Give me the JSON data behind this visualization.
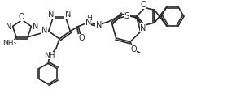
{
  "background_color": "#ffffff",
  "line_color": "#2a2a2a",
  "figsize": [
    3.06,
    1.37
  ],
  "dpi": 100,
  "bond_width": 1.2,
  "font_size": 6.5,
  "xlim": [
    0,
    306
  ],
  "ylim": [
    0,
    137
  ]
}
